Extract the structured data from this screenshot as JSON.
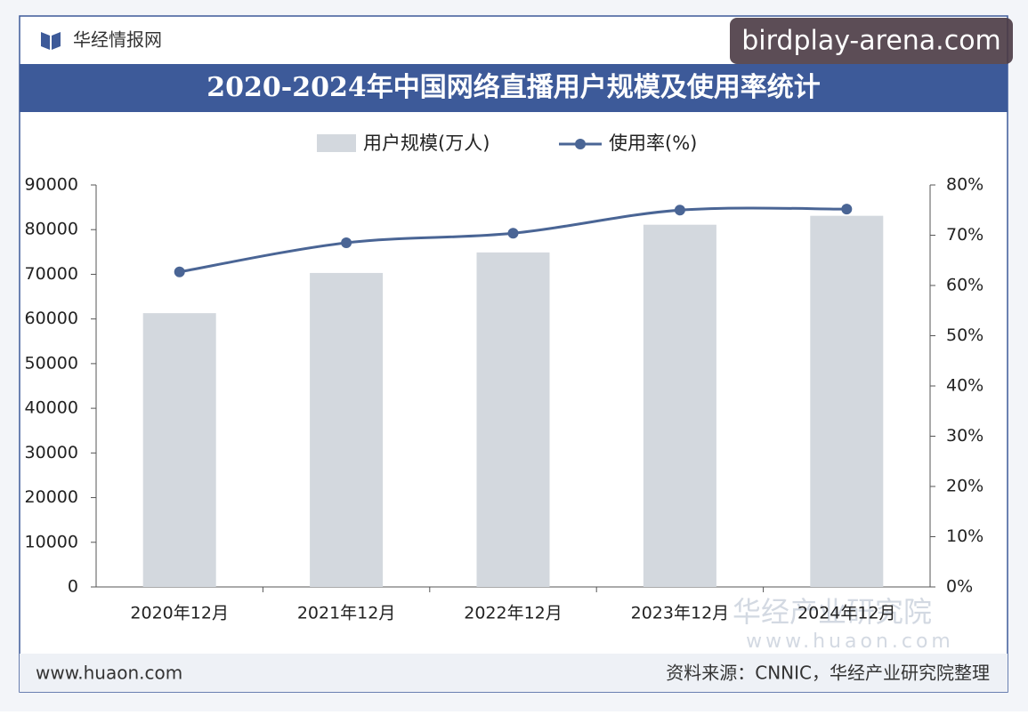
{
  "header": {
    "brand": "华经情报网",
    "watermark": "birdplay-arena.com"
  },
  "chart_data": {
    "type": "bar_line",
    "title": "2020-2024年中国网络直播用户规模及使用率统计",
    "categories": [
      "2020年12月",
      "2021年12月",
      "2022年12月",
      "2023年12月",
      "2024年12月"
    ],
    "series": [
      {
        "name": "用户规模(万人)",
        "color": "#d3d8de",
        "type": "bar",
        "values": [
          61300,
          70300,
          74900,
          81100,
          83100
        ]
      },
      {
        "name": "使用率(%)",
        "color": "#4a6595",
        "type": "line",
        "axis": "y2",
        "values": [
          62.7,
          68.5,
          70.4,
          75.0,
          75.2
        ]
      }
    ],
    "ylim": [
      0,
      90000
    ],
    "yticks": [
      0,
      10000,
      20000,
      30000,
      40000,
      50000,
      60000,
      70000,
      80000,
      90000
    ],
    "y2lim": [
      0,
      80
    ],
    "y2ticks": [
      {
        "value": 0,
        "label": "0%"
      },
      {
        "value": 10,
        "label": "10%"
      },
      {
        "value": 20,
        "label": "20%"
      },
      {
        "value": 30,
        "label": "30%"
      },
      {
        "value": 40,
        "label": "40%"
      },
      {
        "value": 50,
        "label": "50%"
      },
      {
        "value": 60,
        "label": "60%"
      },
      {
        "value": 70,
        "label": "70%"
      },
      {
        "value": 80,
        "label": "80%"
      }
    ],
    "legend": "top"
  },
  "footer": {
    "url": "www.huaon.com",
    "source": "资料来源：CNNIC，华经产业研究院整理",
    "stamp": "华经产业研究院",
    "stamp_url": "www.huaon.com"
  }
}
